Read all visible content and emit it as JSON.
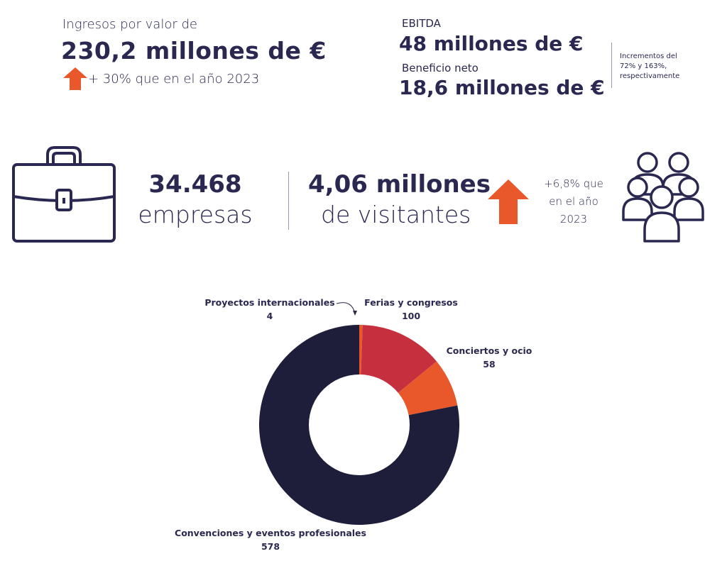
{
  "revenue": {
    "label": "Ingresos por valor de",
    "value": "230,2 millones de €",
    "growth": "+ 30% que en el año 2023"
  },
  "ebitda": {
    "label": "EBITDA",
    "value": "48 millones de €"
  },
  "net_profit": {
    "label": "Beneficio neto",
    "value": "18,6 millones de €"
  },
  "increments_note": "Incrementos del 72% y 163%, respectivamente",
  "companies": {
    "value": "34.468",
    "label": "empresas"
  },
  "visitors": {
    "value": "4,06 millones",
    "label": "de visitantes",
    "growth_line1": "+6,8% que",
    "growth_line2": "en el año",
    "growth_line3": "2023"
  },
  "colors": {
    "navy": "#1e1e3a",
    "text": "#2a2850",
    "red": "#c62f3e",
    "orange": "#e8582a"
  },
  "icons": [
    "arrow-up-icon",
    "briefcase-icon",
    "people-icon"
  ],
  "chart_data": {
    "type": "pie",
    "donut": true,
    "categories": [
      "Proyectos internacionales",
      "Ferias y congresos",
      "Conciertos y ocio",
      "Convenciones y eventos profesionales"
    ],
    "values": [
      4,
      100,
      58,
      578
    ],
    "colors": [
      "#e8582a",
      "#c62f3e",
      "#e8582a",
      "#1e1e3a"
    ],
    "title": "",
    "legend": "none"
  }
}
